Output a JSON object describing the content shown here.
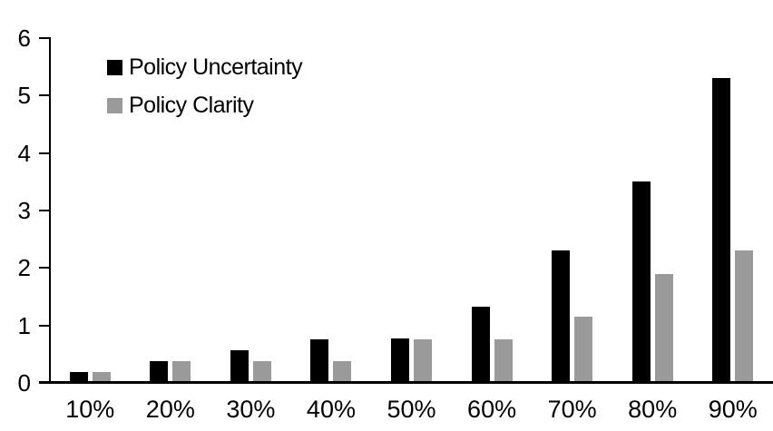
{
  "chart_data": {
    "type": "bar",
    "title": "",
    "xlabel": "",
    "ylabel": "",
    "categories": [
      "10%",
      "20%",
      "30%",
      "40%",
      "50%",
      "60%",
      "70%",
      "80%",
      "90%"
    ],
    "series": [
      {
        "name": "Policy Uncertainty",
        "color": "#000000",
        "values": [
          0.19,
          0.38,
          0.57,
          0.76,
          0.78,
          1.33,
          2.31,
          3.51,
          5.31
        ]
      },
      {
        "name": "Policy Clarity",
        "color": "#9a9a9a",
        "values": [
          0.19,
          0.38,
          0.38,
          0.38,
          0.76,
          0.76,
          1.15,
          1.9,
          2.31
        ]
      }
    ],
    "ylim": [
      0,
      6
    ],
    "yticks": [
      0,
      1,
      2,
      3,
      4,
      5,
      6
    ],
    "grid": false,
    "legend_position": "top-left-inside",
    "axis_color": "#000000",
    "background_color": "#ffffff"
  }
}
